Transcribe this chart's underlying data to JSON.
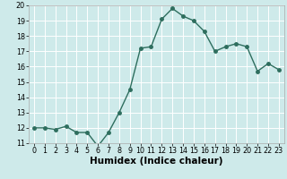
{
  "x": [
    0,
    1,
    2,
    3,
    4,
    5,
    6,
    7,
    8,
    9,
    10,
    11,
    12,
    13,
    14,
    15,
    16,
    17,
    18,
    19,
    20,
    21,
    22,
    23
  ],
  "y": [
    12.0,
    12.0,
    11.9,
    12.1,
    11.7,
    11.7,
    10.8,
    11.7,
    13.0,
    14.5,
    17.2,
    17.3,
    19.1,
    19.8,
    19.3,
    19.0,
    18.3,
    17.0,
    17.3,
    17.5,
    17.3,
    15.7,
    16.2,
    15.8
  ],
  "xlabel": "Humidex (Indice chaleur)",
  "ylim": [
    11,
    20
  ],
  "xlim_min": -0.5,
  "xlim_max": 23.5,
  "yticks": [
    11,
    12,
    13,
    14,
    15,
    16,
    17,
    18,
    19,
    20
  ],
  "xticks": [
    0,
    1,
    2,
    3,
    4,
    5,
    6,
    7,
    8,
    9,
    10,
    11,
    12,
    13,
    14,
    15,
    16,
    17,
    18,
    19,
    20,
    21,
    22,
    23
  ],
  "line_color": "#2e6e5e",
  "marker_color": "#2e6e5e",
  "bg_color": "#ceeaea",
  "grid_color": "#ffffff",
  "tick_label_fontsize": 5.8,
  "xlabel_fontsize": 7.5,
  "marker_size": 2.5,
  "line_width": 1.0
}
